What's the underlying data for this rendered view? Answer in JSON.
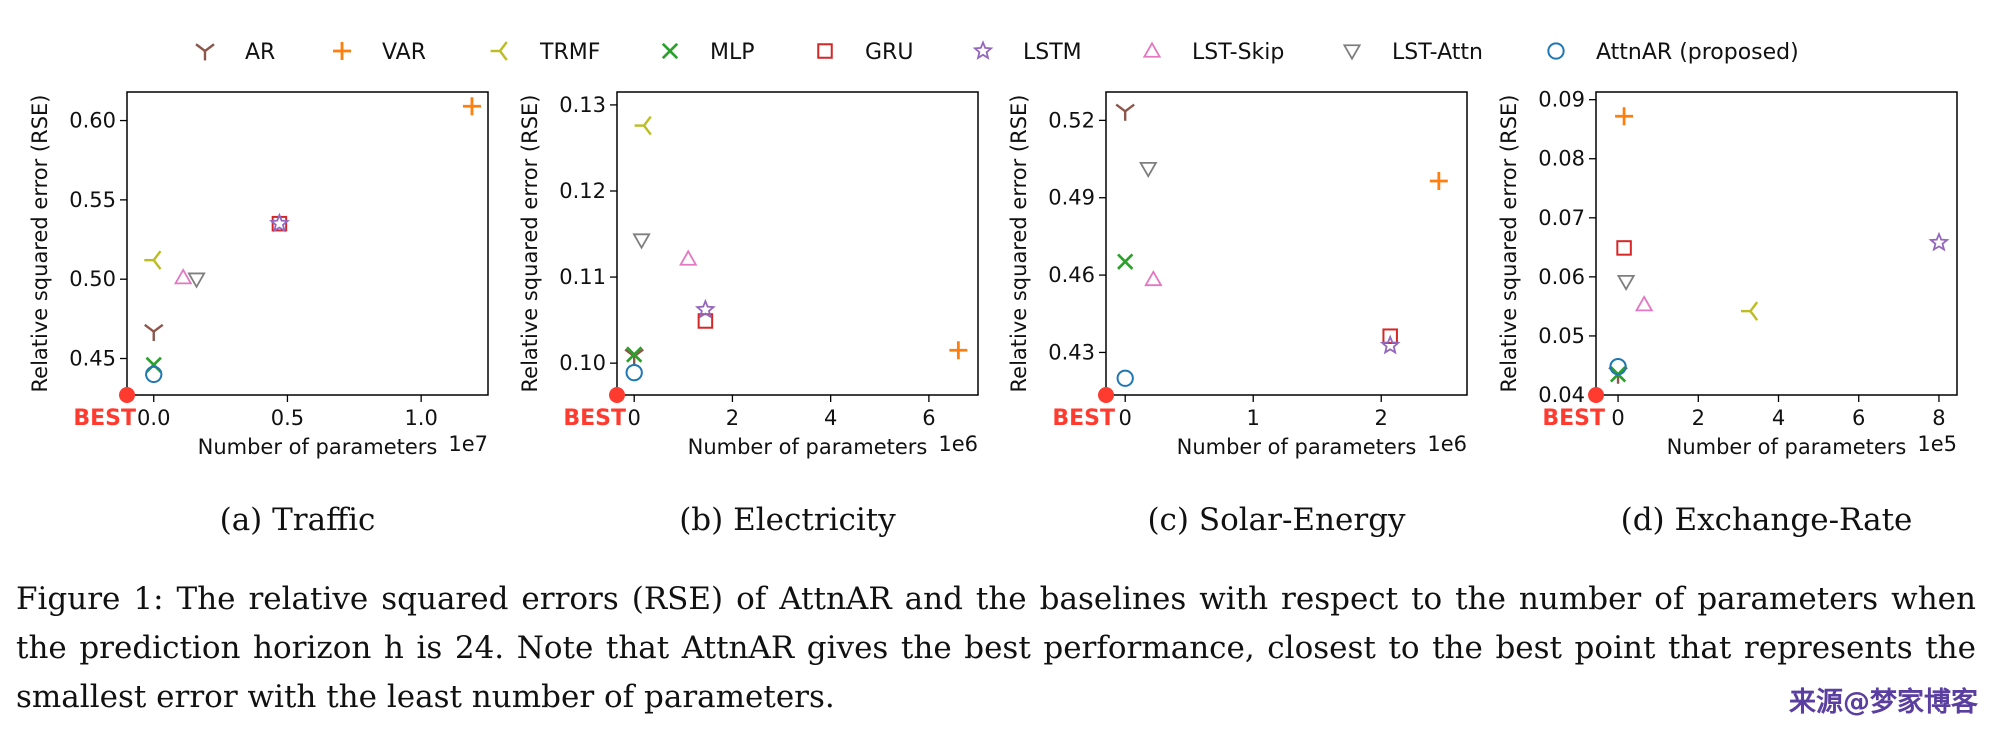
{
  "legend": {
    "placement": "top",
    "entries": [
      {
        "name": "AR",
        "marker": "tri-y",
        "color": "#8c564b"
      },
      {
        "name": "VAR",
        "marker": "plus",
        "color": "#ff7f0e"
      },
      {
        "name": "TRMF",
        "marker": "tri-left",
        "color": "#bcbd22"
      },
      {
        "name": "MLP",
        "marker": "x",
        "color": "#2ca02c"
      },
      {
        "name": "GRU",
        "marker": "square",
        "color": "#d62728"
      },
      {
        "name": "LSTM",
        "marker": "star",
        "color": "#9467bd"
      },
      {
        "name": "LST-Skip",
        "marker": "triangle-up",
        "color": "#e377c2"
      },
      {
        "name": "LST-Attn",
        "marker": "triangle-down",
        "color": "#7f7f7f"
      },
      {
        "name": "AttnAR (proposed)",
        "marker": "circle",
        "color": "#1f77b4"
      }
    ]
  },
  "best_label": "BEST",
  "best_color": "#ff3b30",
  "chart_data": [
    {
      "type": "scatter",
      "caption": "(a) Traffic",
      "xlabel": "Number of parameters",
      "ylabel": "Relative squared error (RSE)",
      "x_multiplier": "1e7",
      "xlim": [
        -0.1,
        1.25
      ],
      "ylim": [
        0.427,
        0.618
      ],
      "xticks": [
        0.0,
        0.5,
        1.0
      ],
      "xtick_labels": [
        "0.0",
        "0.5",
        "1.0"
      ],
      "yticks": [
        0.45,
        0.5,
        0.55,
        0.6
      ],
      "ytick_labels": [
        "0.45",
        "0.50",
        "0.55",
        "0.60"
      ],
      "best_point": {
        "x": -0.1,
        "y": 0.427
      },
      "points": [
        {
          "series": "AR",
          "x": 0.0,
          "y": 0.467
        },
        {
          "series": "VAR",
          "x": 1.19,
          "y": 0.609
        },
        {
          "series": "TRMF",
          "x": 0.0,
          "y": 0.512
        },
        {
          "series": "MLP",
          "x": 0.0,
          "y": 0.446
        },
        {
          "series": "GRU",
          "x": 0.47,
          "y": 0.535
        },
        {
          "series": "LSTM",
          "x": 0.47,
          "y": 0.535
        },
        {
          "series": "LST-Skip",
          "x": 0.11,
          "y": 0.501
        },
        {
          "series": "LST-Attn",
          "x": 0.16,
          "y": 0.5
        },
        {
          "series": "AttnAR (proposed)",
          "x": 0.0,
          "y": 0.44
        }
      ]
    },
    {
      "type": "scatter",
      "caption": "(b) Electricity",
      "xlabel": "Number of parameters",
      "ylabel": "Relative squared error (RSE)",
      "x_multiplier": "1e6",
      "xlim": [
        -0.35,
        7.0
      ],
      "ylim": [
        0.0963,
        0.1315
      ],
      "xticks": [
        0,
        2,
        4,
        6
      ],
      "xtick_labels": [
        "0",
        "2",
        "4",
        "6"
      ],
      "yticks": [
        0.1,
        0.11,
        0.12,
        0.13
      ],
      "ytick_labels": [
        "0.10",
        "0.11",
        "0.12",
        "0.13"
      ],
      "best_point": {
        "x": -0.35,
        "y": 0.0963
      },
      "points": [
        {
          "series": "AR",
          "x": 0.0,
          "y": 0.1008
        },
        {
          "series": "VAR",
          "x": 6.6,
          "y": 0.1015
        },
        {
          "series": "TRMF",
          "x": 0.2,
          "y": 0.1276
        },
        {
          "series": "MLP",
          "x": 0.0,
          "y": 0.101
        },
        {
          "series": "GRU",
          "x": 1.45,
          "y": 0.1049
        },
        {
          "series": "LSTM",
          "x": 1.45,
          "y": 0.1062
        },
        {
          "series": "LST-Skip",
          "x": 1.1,
          "y": 0.1121
        },
        {
          "series": "LST-Attn",
          "x": 0.15,
          "y": 0.1143
        },
        {
          "series": "AttnAR (proposed)",
          "x": 0.0,
          "y": 0.0989
        }
      ]
    },
    {
      "type": "scatter",
      "caption": "(c) Solar-Energy",
      "xlabel": "Number of parameters",
      "ylabel": "Relative squared error (RSE)",
      "x_multiplier": "1e6",
      "xlim": [
        -0.15,
        2.67
      ],
      "ylim": [
        0.4135,
        0.531
      ],
      "xticks": [
        0,
        1,
        2
      ],
      "xtick_labels": [
        "0",
        "1",
        "2"
      ],
      "yticks": [
        0.43,
        0.46,
        0.49,
        0.52
      ],
      "ytick_labels": [
        "0.43",
        "0.46",
        "0.49",
        "0.52"
      ],
      "best_point": {
        "x": -0.15,
        "y": 0.4135
      },
      "points": [
        {
          "series": "AR",
          "x": 0.0,
          "y": 0.5235
        },
        {
          "series": "VAR",
          "x": 2.45,
          "y": 0.4965
        },
        {
          "series": "MLP",
          "x": 0.0,
          "y": 0.4652
        },
        {
          "series": "GRU",
          "x": 2.07,
          "y": 0.4363
        },
        {
          "series": "LSTM",
          "x": 2.07,
          "y": 0.4327
        },
        {
          "series": "LST-Skip",
          "x": 0.22,
          "y": 0.4583
        },
        {
          "series": "LST-Attn",
          "x": 0.18,
          "y": 0.5013
        },
        {
          "series": "AttnAR (proposed)",
          "x": 0.0,
          "y": 0.42
        }
      ]
    },
    {
      "type": "scatter",
      "caption": "(d) Exchange-Rate",
      "xlabel": "Number of parameters",
      "ylabel": "Relative squared error (RSE)",
      "x_multiplier": "1e5",
      "xlim": [
        -0.55,
        8.45
      ],
      "ylim": [
        0.04,
        0.0913
      ],
      "xticks": [
        0,
        2,
        4,
        6,
        8
      ],
      "xtick_labels": [
        "0",
        "2",
        "4",
        "6",
        "8"
      ],
      "yticks": [
        0.04,
        0.05,
        0.06,
        0.07,
        0.08,
        0.09
      ],
      "ytick_labels": [
        "0.04",
        "0.05",
        "0.06",
        "0.07",
        "0.08",
        "0.09"
      ],
      "best_point": {
        "x": -0.55,
        "y": 0.04
      },
      "points": [
        {
          "series": "AR",
          "x": 0.0,
          "y": 0.0435
        },
        {
          "series": "VAR",
          "x": 0.15,
          "y": 0.0872
        },
        {
          "series": "TRMF",
          "x": 3.3,
          "y": 0.0542
        },
        {
          "series": "MLP",
          "x": 0.0,
          "y": 0.0435
        },
        {
          "series": "GRU",
          "x": 0.15,
          "y": 0.0649
        },
        {
          "series": "LSTM",
          "x": 8.0,
          "y": 0.0658
        },
        {
          "series": "LST-Skip",
          "x": 0.65,
          "y": 0.0553
        },
        {
          "series": "LST-Attn",
          "x": 0.2,
          "y": 0.0592
        },
        {
          "series": "AttnAR (proposed)",
          "x": 0.0,
          "y": 0.0448
        }
      ]
    }
  ],
  "caption": {
    "label": "Figure 1:",
    "text": "The relative squared errors (RSE) of AttnAR and the baselines with respect to the number of parameters when the prediction horizon h is 24. Note that AttnAR gives the best performance, closest to the best point that represents the smallest error with the least number of parameters."
  },
  "watermark": "来源@梦家博客"
}
